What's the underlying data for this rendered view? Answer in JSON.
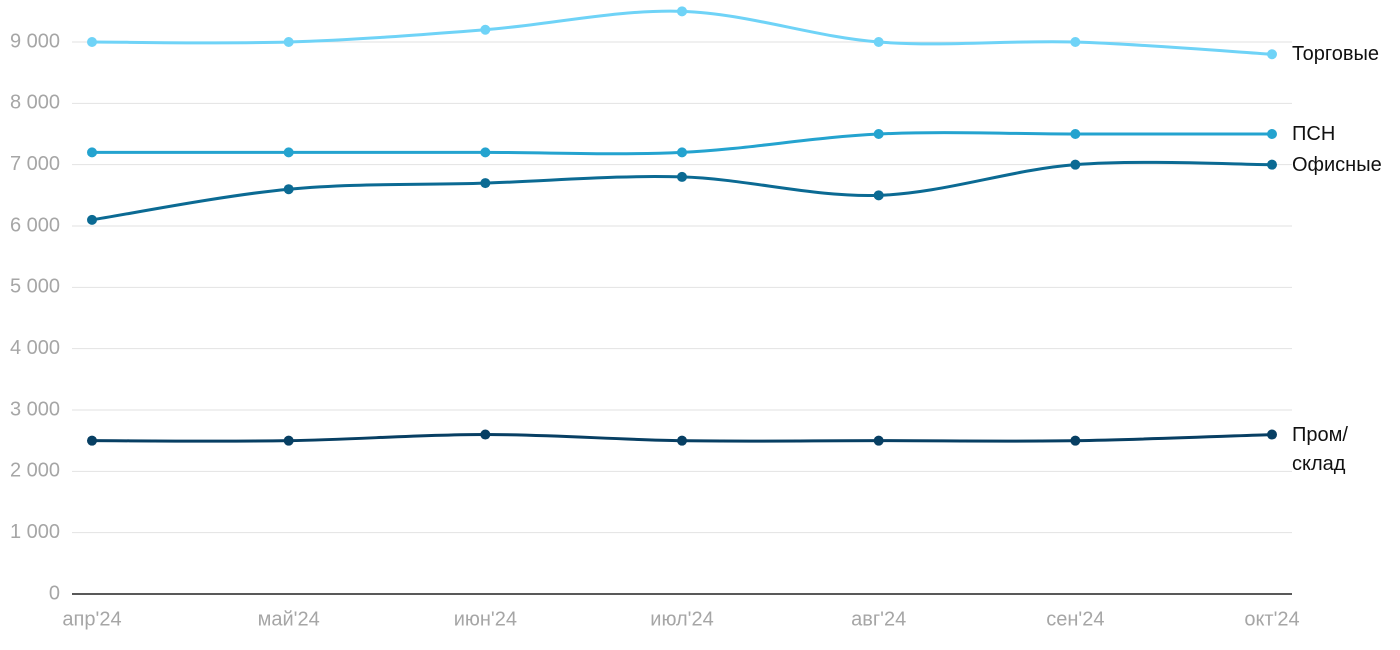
{
  "chart_data": {
    "type": "line",
    "categories": [
      "апр'24",
      "май'24",
      "июн'24",
      "июл'24",
      "авг'24",
      "сен'24",
      "окт'24"
    ],
    "series": [
      {
        "name": "Торговые",
        "color": "#6fd3f7",
        "values": [
          9000,
          9000,
          9200,
          9500,
          9000,
          9000,
          8800
        ]
      },
      {
        "name": "ПСН",
        "color": "#24a3cf",
        "values": [
          7200,
          7200,
          7200,
          7200,
          7500,
          7500,
          7500
        ]
      },
      {
        "name": "Офисные",
        "color": "#0b6a93",
        "values": [
          6100,
          6600,
          6700,
          6800,
          6500,
          7000,
          7000
        ]
      },
      {
        "name": "Пром/ склад",
        "color": "#073f63",
        "values": [
          2500,
          2500,
          2600,
          2500,
          2500,
          2500,
          2600
        ]
      }
    ],
    "ylim": [
      0,
      9000
    ],
    "yticks": [
      0,
      {
        "value": 1000,
        "label": "1 000"
      },
      {
        "value": 2000,
        "label": "2 000"
      },
      {
        "value": 3000,
        "label": "3 000"
      },
      {
        "value": 4000,
        "label": "4 000"
      },
      {
        "value": 5000,
        "label": "5 000"
      },
      {
        "value": 6000,
        "label": "6 000"
      },
      {
        "value": 7000,
        "label": "7 000"
      },
      {
        "value": 8000,
        "label": "8 000"
      },
      {
        "value": 9000,
        "label": "9 000"
      }
    ],
    "grid": true
  }
}
